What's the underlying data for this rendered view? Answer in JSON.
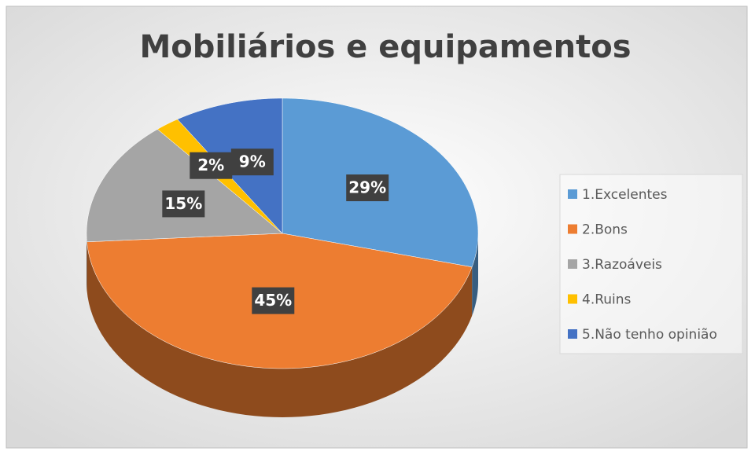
{
  "chart_data": {
    "type": "pie",
    "title": "Mobiliários e equipamentos",
    "categories": [
      "1.Excelentes",
      "2.Bons",
      "3.Razoáveis",
      "4.Ruins",
      "5.Não tenho opinião"
    ],
    "values": [
      29,
      45,
      15,
      2,
      9
    ],
    "value_labels": [
      "29%",
      "45%",
      "15%",
      "2%",
      "9%"
    ],
    "colors": [
      "#5b9bd5",
      "#ed7d31",
      "#a5a5a5",
      "#ffc000",
      "#4472c4"
    ],
    "legend": "right"
  }
}
